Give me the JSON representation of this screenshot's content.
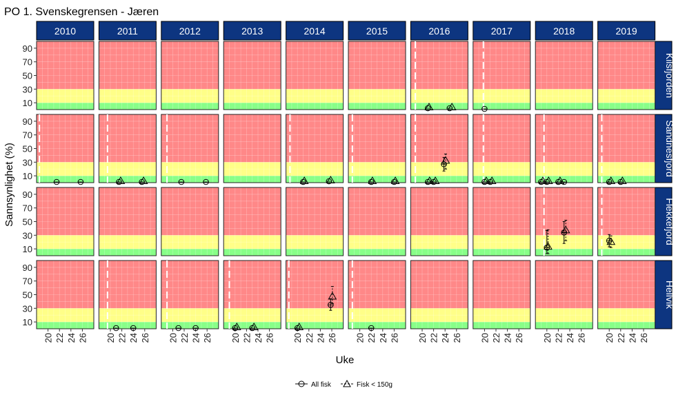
{
  "chart_data": {
    "type": "scatter",
    "title": "PO 1. Svenskegrensen - Jæren",
    "xlabel": "Uke",
    "ylabel": "Sannsynlighet (%)",
    "years": [
      "2010",
      "2011",
      "2012",
      "2013",
      "2014",
      "2015",
      "2016",
      "2017",
      "2018",
      "2019"
    ],
    "locations": [
      "Kilsfjorden",
      "Sandnesfjord",
      "Flekkefjord",
      "Hellvik"
    ],
    "x_ticks": [
      "20",
      "22",
      "24",
      "26"
    ],
    "y_ticks": [
      "10",
      "30",
      "50",
      "70",
      "90"
    ],
    "xlim": [
      18,
      28
    ],
    "ylim": [
      0,
      100
    ],
    "bands": [
      {
        "from": 0,
        "to": 10,
        "color": "#88ff88"
      },
      {
        "from": 10,
        "to": 30,
        "color": "#ffff88"
      },
      {
        "from": 30,
        "to": 100,
        "color": "#ff8888"
      }
    ],
    "strip_color": "#0d3580",
    "legend": {
      "position": "bottom",
      "items": [
        {
          "label": "All fisk",
          "shape": "circle"
        },
        {
          "label": "Fisk < 150g",
          "shape": "triangle"
        }
      ]
    },
    "vlines": [
      {
        "loc": 0,
        "year": 6,
        "week": 18.8
      },
      {
        "loc": 0,
        "year": 7,
        "week": 19.8
      },
      {
        "loc": 1,
        "year": 0,
        "week": 18.5
      },
      {
        "loc": 1,
        "year": 1,
        "week": 19.5
      },
      {
        "loc": 1,
        "year": 2,
        "week": 19.0
      },
      {
        "loc": 1,
        "year": 4,
        "week": 18.7
      },
      {
        "loc": 1,
        "year": 5,
        "week": 18.7
      },
      {
        "loc": 1,
        "year": 6,
        "week": 18.8
      },
      {
        "loc": 1,
        "year": 7,
        "week": 19.8
      },
      {
        "loc": 1,
        "year": 8,
        "week": 19.5
      },
      {
        "loc": 1,
        "year": 9,
        "week": 18.7
      },
      {
        "loc": 2,
        "year": 8,
        "week": 19.5
      },
      {
        "loc": 2,
        "year": 9,
        "week": 18.7
      },
      {
        "loc": 3,
        "year": 1,
        "week": 19.5
      },
      {
        "loc": 3,
        "year": 2,
        "week": 19.0
      },
      {
        "loc": 3,
        "year": 3,
        "week": 19.0
      },
      {
        "loc": 3,
        "year": 4,
        "week": 18.5
      },
      {
        "loc": 3,
        "year": 5,
        "week": 18.7
      }
    ],
    "series": [
      {
        "name": "All fisk",
        "points": [
          {
            "loc": 0,
            "year": 6,
            "week": 21.0,
            "y": 2
          },
          {
            "loc": 0,
            "year": 6,
            "week": 24.8,
            "y": 2
          },
          {
            "loc": 0,
            "year": 7,
            "week": 20.0,
            "y": 1
          },
          {
            "loc": 1,
            "year": 0,
            "week": 21.5,
            "y": 1
          },
          {
            "loc": 1,
            "year": 0,
            "week": 25.7,
            "y": 1
          },
          {
            "loc": 1,
            "year": 1,
            "week": 21.5,
            "y": 1
          },
          {
            "loc": 1,
            "year": 1,
            "week": 25.5,
            "y": 1
          },
          {
            "loc": 1,
            "year": 2,
            "week": 21.5,
            "y": 1
          },
          {
            "loc": 1,
            "year": 2,
            "week": 25.8,
            "y": 1
          },
          {
            "loc": 1,
            "year": 4,
            "week": 21.0,
            "y": 1
          },
          {
            "loc": 1,
            "year": 4,
            "week": 25.5,
            "y": 2
          },
          {
            "loc": 1,
            "year": 5,
            "week": 22.0,
            "y": 1
          },
          {
            "loc": 1,
            "year": 5,
            "week": 26.0,
            "y": 1
          },
          {
            "loc": 1,
            "year": 6,
            "week": 21.0,
            "y": 1
          },
          {
            "loc": 1,
            "year": 6,
            "week": 22.0,
            "y": 1
          },
          {
            "loc": 1,
            "year": 6,
            "week": 23.8,
            "y": 27,
            "lo": 17,
            "hi": 37
          },
          {
            "loc": 1,
            "year": 7,
            "week": 20.0,
            "y": 1
          },
          {
            "loc": 1,
            "year": 7,
            "week": 21.0,
            "y": 1
          },
          {
            "loc": 1,
            "year": 8,
            "week": 19.0,
            "y": 1
          },
          {
            "loc": 1,
            "year": 8,
            "week": 20.0,
            "y": 1
          },
          {
            "loc": 1,
            "year": 8,
            "week": 22.0,
            "y": 1
          },
          {
            "loc": 1,
            "year": 8,
            "week": 23.0,
            "y": 1
          },
          {
            "loc": 1,
            "year": 9,
            "week": 20.0,
            "y": 1
          },
          {
            "loc": 1,
            "year": 9,
            "week": 22.0,
            "y": 1
          },
          {
            "loc": 2,
            "year": 8,
            "week": 20.0,
            "y": 12,
            "lo": 3,
            "hi": 37
          },
          {
            "loc": 2,
            "year": 8,
            "week": 23.0,
            "y": 34,
            "lo": 18,
            "hi": 50
          },
          {
            "loc": 2,
            "year": 9,
            "week": 20.0,
            "y": 22,
            "lo": 13,
            "hi": 31
          },
          {
            "loc": 3,
            "year": 1,
            "week": 21.0,
            "y": 1
          },
          {
            "loc": 3,
            "year": 1,
            "week": 24.0,
            "y": 1
          },
          {
            "loc": 3,
            "year": 2,
            "week": 21.0,
            "y": 1
          },
          {
            "loc": 3,
            "year": 2,
            "week": 24.0,
            "y": 1
          },
          {
            "loc": 3,
            "year": 3,
            "week": 20.0,
            "y": 1
          },
          {
            "loc": 3,
            "year": 3,
            "week": 23.0,
            "y": 1
          },
          {
            "loc": 3,
            "year": 4,
            "week": 20.0,
            "y": 1
          },
          {
            "loc": 3,
            "year": 4,
            "week": 25.8,
            "y": 35,
            "lo": 27,
            "hi": 44
          },
          {
            "loc": 3,
            "year": 5,
            "week": 22.0,
            "y": 1
          }
        ]
      },
      {
        "name": "Fisk < 150g",
        "points": [
          {
            "loc": 0,
            "year": 6,
            "week": 21.2,
            "y": 3
          },
          {
            "loc": 0,
            "year": 6,
            "week": 25.2,
            "y": 3
          },
          {
            "loc": 1,
            "year": 1,
            "week": 21.8,
            "y": 2
          },
          {
            "loc": 1,
            "year": 1,
            "week": 25.8,
            "y": 2
          },
          {
            "loc": 1,
            "year": 4,
            "week": 21.2,
            "y": 2
          },
          {
            "loc": 1,
            "year": 4,
            "week": 25.8,
            "y": 3
          },
          {
            "loc": 1,
            "year": 5,
            "week": 22.2,
            "y": 2
          },
          {
            "loc": 1,
            "year": 5,
            "week": 26.2,
            "y": 2
          },
          {
            "loc": 1,
            "year": 6,
            "week": 21.3,
            "y": 2
          },
          {
            "loc": 1,
            "year": 6,
            "week": 22.3,
            "y": 2
          },
          {
            "loc": 1,
            "year": 6,
            "week": 24.1,
            "y": 32,
            "lo": 20,
            "hi": 42
          },
          {
            "loc": 1,
            "year": 7,
            "week": 20.3,
            "y": 2
          },
          {
            "loc": 1,
            "year": 7,
            "week": 21.3,
            "y": 2
          },
          {
            "loc": 1,
            "year": 8,
            "week": 19.3,
            "y": 2
          },
          {
            "loc": 1,
            "year": 8,
            "week": 20.3,
            "y": 2
          },
          {
            "loc": 1,
            "year": 8,
            "week": 22.3,
            "y": 2
          },
          {
            "loc": 1,
            "year": 9,
            "week": 20.3,
            "y": 2
          },
          {
            "loc": 1,
            "year": 9,
            "week": 22.3,
            "y": 2
          },
          {
            "loc": 2,
            "year": 8,
            "week": 20.2,
            "y": 13,
            "lo": 3,
            "hi": 38
          },
          {
            "loc": 2,
            "year": 8,
            "week": 23.3,
            "y": 37,
            "lo": 22,
            "hi": 52
          },
          {
            "loc": 2,
            "year": 9,
            "week": 20.3,
            "y": 20,
            "lo": 12,
            "hi": 29
          },
          {
            "loc": 3,
            "year": 3,
            "week": 20.3,
            "y": 2
          },
          {
            "loc": 3,
            "year": 3,
            "week": 23.3,
            "y": 2
          },
          {
            "loc": 3,
            "year": 4,
            "week": 20.3,
            "y": 2
          },
          {
            "loc": 3,
            "year": 4,
            "week": 26.1,
            "y": 47,
            "lo": 37,
            "hi": 62
          }
        ]
      }
    ]
  }
}
